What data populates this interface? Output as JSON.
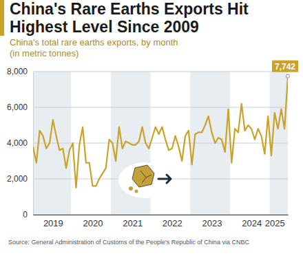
{
  "chart_data": {
    "type": "line",
    "title": "China's Rare Earths Exports Hit Highest Level Since 2009",
    "subtitle": "China's total rare earths exports, by month (in metric tonnes)",
    "source": "Source: General Administration of Customs of the People's Republic of China via CNBC",
    "categories": [
      null,
      null,
      null,
      null,
      null,
      null,
      "2019",
      null,
      null,
      null,
      null,
      null,
      null,
      null,
      null,
      null,
      null,
      null,
      "2020",
      null,
      null,
      null,
      null,
      null,
      null,
      null,
      null,
      null,
      null,
      null,
      "2021",
      null,
      null,
      null,
      null,
      null,
      null,
      null,
      null,
      null,
      null,
      null,
      "2022",
      null,
      null,
      null,
      null,
      null,
      null,
      null,
      null,
      null,
      null,
      null,
      "2023",
      null,
      null,
      null,
      null,
      null,
      null,
      null,
      null,
      null,
      null,
      null,
      "2024",
      null,
      null,
      null,
      null,
      null,
      null,
      "2025",
      null,
      null,
      null,
      null
    ],
    "values": [
      3800,
      2900,
      4700,
      4400,
      3700,
      4000,
      5300,
      4400,
      3600,
      3700,
      2600,
      3600,
      4000,
      1500,
      3900,
      4900,
      2900,
      2900,
      1600,
      1600,
      2000,
      2300,
      2600,
      4200,
      4000,
      3000,
      4900,
      3700,
      4100,
      4000,
      3900,
      3900,
      4100,
      4900,
      4000,
      3700,
      4300,
      4900,
      4500,
      4900,
      4200,
      3600,
      3700,
      4400,
      3800,
      3000,
      4400,
      4700,
      2800,
      4500,
      4600,
      4600,
      5000,
      5500,
      4600,
      4000,
      4300,
      4200,
      3500,
      5900,
      2900,
      4800,
      4600,
      6200,
      4700,
      5000,
      4800,
      4200,
      4800,
      4400,
      3400,
      5500,
      3300,
      5700,
      4800,
      5900,
      4800,
      7742
    ],
    "color": "#c9a227",
    "ylim": [
      0,
      8000
    ],
    "yticks": [
      0,
      {
        "value": 2000,
        "label": "2,000"
      },
      {
        "value": 4000,
        "label": "4,000"
      },
      {
        "value": 6000,
        "label": "6,000"
      },
      {
        "value": 8000,
        "label": "8,000"
      }
    ],
    "grid": true,
    "annotations": [
      {
        "x": 77,
        "y": 7742,
        "text": "7,742"
      }
    ]
  }
}
